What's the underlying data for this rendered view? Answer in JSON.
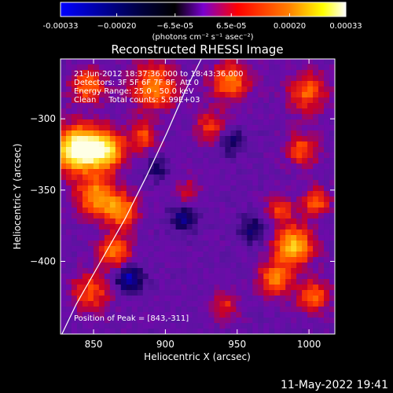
{
  "chart_data": {
    "type": "heatmap",
    "title": "Reconstructed RHESSI Image",
    "xlabel": "Heliocentric X (arcsec)",
    "ylabel": "Heliocentric Y (arcsec)",
    "xlim": [
      827,
      1018
    ],
    "ylim": [
      -451,
      -258
    ],
    "x_ticks": [
      850,
      900,
      950,
      1000
    ],
    "y_ticks": [
      -300,
      -350,
      -400
    ],
    "colorbar": {
      "range": [
        -0.00033,
        0.00033
      ],
      "tick_values": [
        -0.00033,
        -0.0002,
        -6.5e-05,
        6.5e-05,
        0.0002,
        0.00033
      ],
      "tick_labels": [
        "-0.00033",
        "−0.00020",
        "−6.5e-05",
        "6.5e-05",
        "0.00020",
        "0.00033"
      ],
      "units": "(photons cm⁻² s⁻¹ asec⁻²)",
      "colors": [
        "#0000ff",
        "#000000",
        "#7a00d0",
        "#ff0000",
        "#ff8000",
        "#ffff00",
        "#ffffff"
      ]
    },
    "annotations": [
      "21-Jun-2012 18:37:36.000 to 18:43:36.000",
      "Detectors: 3F 5F 6F 7F 8F, Att 0",
      "Energy Range: 25.0 - 50.0 keV",
      "Clean     Total counts: 5.99E+03"
    ],
    "peak_label": "Position of Peak = [843,-311]",
    "limb_points": [
      [
        828,
        -451
      ],
      [
        838,
        -430
      ],
      [
        855,
        -400
      ],
      [
        872,
        -370
      ],
      [
        887,
        -340
      ],
      [
        901,
        -310
      ],
      [
        914,
        -280
      ],
      [
        925,
        -258
      ]
    ],
    "grid": false
  },
  "footer": {
    "datetime": "11-May-2022 19:41"
  }
}
